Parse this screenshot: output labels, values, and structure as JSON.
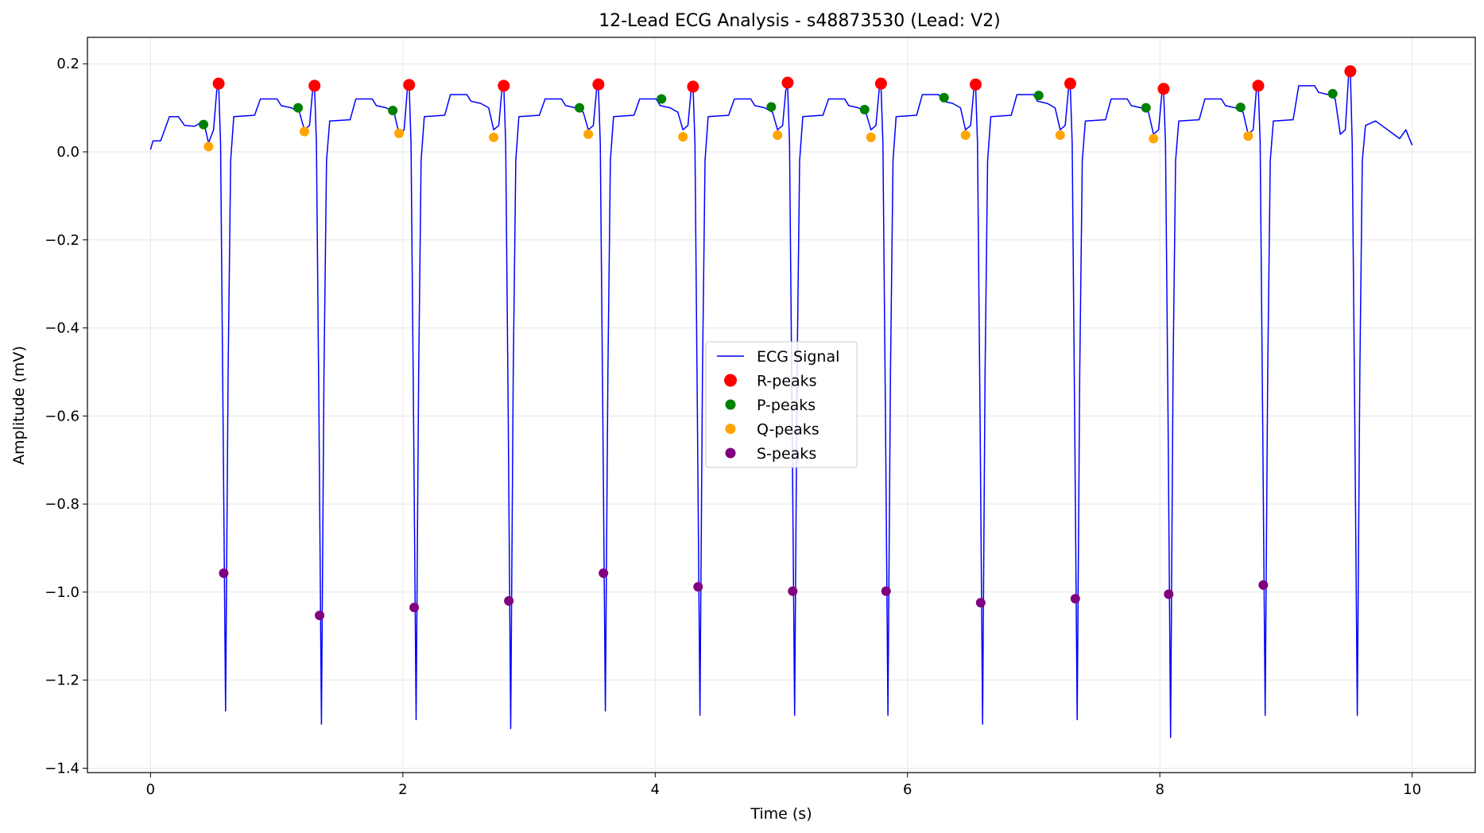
{
  "chart_data": {
    "type": "line",
    "title": "12-Lead ECG Analysis - s48873530 (Lead: V2)",
    "xlabel": "Time (s)",
    "ylabel": "Amplitude (mV)",
    "xlim": [
      -0.5,
      10.5
    ],
    "ylim": [
      -1.41,
      0.26
    ],
    "xticks": [
      0,
      2,
      4,
      6,
      8,
      10
    ],
    "yticks": [
      0.2,
      0.0,
      -0.2,
      -0.4,
      -0.6,
      -0.8,
      -1.0,
      -1.2,
      -1.4
    ],
    "xtick_labels": [
      "0",
      "2",
      "4",
      "6",
      "8",
      "10"
    ],
    "ytick_labels": [
      "0.2",
      "0.0",
      "−0.2",
      "−0.4",
      "−0.6",
      "−0.8",
      "−1.0",
      "−1.2",
      "−1.4"
    ],
    "grid": true,
    "legend_position": "center",
    "series": [
      {
        "name": "ECG Signal",
        "kind": "line",
        "color": "#0000ff",
        "beats": [
          {
            "r_t": 0.54,
            "r_v": 0.15,
            "trough": -1.27
          },
          {
            "r_t": 1.3,
            "r_v": 0.15,
            "trough": -1.3
          },
          {
            "r_t": 2.05,
            "r_v": 0.15,
            "trough": -1.29
          },
          {
            "r_t": 2.8,
            "r_v": 0.15,
            "trough": -1.31
          },
          {
            "r_t": 3.55,
            "r_v": 0.15,
            "trough": -1.27
          },
          {
            "r_t": 4.3,
            "r_v": 0.15,
            "trough": -1.28
          },
          {
            "r_t": 5.05,
            "r_v": 0.15,
            "trough": -1.28
          },
          {
            "r_t": 5.79,
            "r_v": 0.15,
            "trough": -1.28
          },
          {
            "r_t": 6.54,
            "r_v": 0.15,
            "trough": -1.3
          },
          {
            "r_t": 7.29,
            "r_v": 0.15,
            "trough": -1.29
          },
          {
            "r_t": 8.03,
            "r_v": 0.14,
            "trough": -1.33
          },
          {
            "r_t": 8.78,
            "r_v": 0.15,
            "trough": -1.28
          },
          {
            "r_t": 9.51,
            "r_v": 0.18,
            "trough": -1.28
          }
        ],
        "baseline": [
          [
            0.54,
            0.07
          ],
          [
            1.3,
            0.08
          ],
          [
            2.05,
            0.07
          ],
          [
            2.8,
            0.08
          ],
          [
            3.55,
            0.08
          ],
          [
            4.3,
            0.08
          ],
          [
            5.05,
            0.08
          ],
          [
            5.79,
            0.08
          ],
          [
            6.54,
            0.08
          ],
          [
            7.29,
            0.08
          ],
          [
            8.03,
            0.07
          ],
          [
            8.78,
            0.07
          ],
          [
            9.51,
            0.07
          ]
        ],
        "plateau": [
          [
            0.54,
            0.1
          ],
          [
            1.3,
            0.12
          ],
          [
            2.05,
            0.12
          ],
          [
            2.8,
            0.13
          ],
          [
            3.55,
            0.12
          ],
          [
            4.3,
            0.12
          ],
          [
            5.05,
            0.12
          ],
          [
            5.79,
            0.12
          ],
          [
            6.54,
            0.13
          ],
          [
            7.29,
            0.13
          ],
          [
            8.03,
            0.12
          ],
          [
            8.78,
            0.12
          ],
          [
            9.51,
            0.15
          ]
        ]
      },
      {
        "name": "R-peaks",
        "kind": "scatter",
        "color": "#ff0000",
        "points": [
          [
            0.54,
            0.155
          ],
          [
            1.3,
            0.15
          ],
          [
            2.05,
            0.152
          ],
          [
            2.8,
            0.15
          ],
          [
            3.55,
            0.153
          ],
          [
            4.3,
            0.148
          ],
          [
            5.05,
            0.157
          ],
          [
            5.79,
            0.155
          ],
          [
            6.54,
            0.153
          ],
          [
            7.29,
            0.155
          ],
          [
            8.03,
            0.143
          ],
          [
            8.78,
            0.15
          ],
          [
            9.51,
            0.183
          ]
        ]
      },
      {
        "name": "P-peaks",
        "kind": "scatter",
        "color": "#008000",
        "points": [
          [
            0.42,
            0.062
          ],
          [
            1.17,
            0.1
          ],
          [
            1.92,
            0.094
          ],
          [
            3.4,
            0.1
          ],
          [
            4.05,
            0.12
          ],
          [
            4.92,
            0.102
          ],
          [
            5.66,
            0.096
          ],
          [
            6.29,
            0.123
          ],
          [
            7.04,
            0.128
          ],
          [
            7.89,
            0.1
          ],
          [
            8.64,
            0.101
          ],
          [
            9.37,
            0.132
          ]
        ]
      },
      {
        "name": "Q-peaks",
        "kind": "scatter",
        "color": "#ffa500",
        "points": [
          [
            0.46,
            0.012
          ],
          [
            1.22,
            0.046
          ],
          [
            1.97,
            0.042
          ],
          [
            2.72,
            0.033
          ],
          [
            3.47,
            0.04
          ],
          [
            4.22,
            0.034
          ],
          [
            4.97,
            0.038
          ],
          [
            5.71,
            0.033
          ],
          [
            6.46,
            0.038
          ],
          [
            7.21,
            0.038
          ],
          [
            7.95,
            0.03
          ],
          [
            8.7,
            0.036
          ]
        ]
      },
      {
        "name": "S-peaks",
        "kind": "scatter",
        "color": "#800080",
        "points": [
          [
            0.58,
            -0.957
          ],
          [
            1.34,
            -1.053
          ],
          [
            2.09,
            -1.035
          ],
          [
            2.84,
            -1.02
          ],
          [
            3.59,
            -0.957
          ],
          [
            4.34,
            -0.988
          ],
          [
            5.09,
            -0.998
          ],
          [
            5.83,
            -0.998
          ],
          [
            6.58,
            -1.024
          ],
          [
            7.33,
            -1.015
          ],
          [
            8.07,
            -1.005
          ],
          [
            8.82,
            -0.984
          ]
        ]
      }
    ]
  }
}
